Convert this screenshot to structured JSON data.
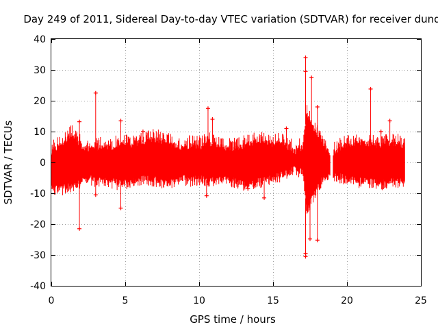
{
  "chart_data": {
    "type": "scatter",
    "title": "Day 249 of 2011, Sidereal Day-to-day VTEC variation (SDTVAR) for receiver dund",
    "xlabel": "GPS time / hours",
    "ylabel": "SDTVAR / TECUs",
    "xlim": [
      0,
      25
    ],
    "ylim": [
      -40,
      40
    ],
    "xticks": [
      0,
      5,
      10,
      15,
      20,
      25
    ],
    "yticks": [
      -40,
      -30,
      -20,
      -10,
      0,
      10,
      20,
      30,
      40
    ],
    "grid": true,
    "color": "#ff0000",
    "marker": "plus",
    "envelope": {
      "x": [
        0.0,
        0.5,
        1.0,
        1.3,
        1.6,
        2.0,
        2.4,
        3.0,
        3.5,
        4.0,
        4.5,
        5.0,
        5.5,
        6.0,
        6.5,
        7.0,
        7.5,
        8.0,
        8.5,
        9.0,
        9.5,
        10.0,
        10.5,
        11.0,
        11.5,
        12.0,
        12.5,
        13.0,
        13.5,
        14.0,
        14.5,
        15.0,
        15.5,
        16.0,
        16.5,
        17.0,
        17.3,
        17.6,
        18.0,
        18.4,
        18.8,
        19.0,
        19.5,
        20.0,
        20.5,
        21.0,
        21.5,
        22.0,
        22.5,
        23.0,
        23.5,
        23.9
      ],
      "upper": [
        3.5,
        5.0,
        7.0,
        9.0,
        8.0,
        5.5,
        4.5,
        4.5,
        5.0,
        5.0,
        5.5,
        6.0,
        5.5,
        6.5,
        7.0,
        7.5,
        7.0,
        6.0,
        5.0,
        5.0,
        5.5,
        5.0,
        6.0,
        6.5,
        5.0,
        4.5,
        4.5,
        5.5,
        6.0,
        7.0,
        6.5,
        6.0,
        6.5,
        5.0,
        3.5,
        5.0,
        16.0,
        12.0,
        9.0,
        5.0,
        3.0,
        3.0,
        4.5,
        5.5,
        6.0,
        6.5,
        6.0,
        5.5,
        6.0,
        6.5,
        6.0,
        5.5
      ],
      "lower": [
        -8.0,
        -8.5,
        -8.0,
        -7.5,
        -7.0,
        -6.0,
        -5.0,
        -5.5,
        -6.0,
        -6.0,
        -6.5,
        -6.5,
        -6.0,
        -5.0,
        -5.0,
        -5.5,
        -6.0,
        -6.0,
        -5.5,
        -5.0,
        -5.5,
        -5.0,
        -5.5,
        -5.5,
        -5.0,
        -5.5,
        -6.0,
        -7.0,
        -7.0,
        -6.0,
        -5.5,
        -5.0,
        -4.0,
        -3.0,
        -2.0,
        -3.0,
        -16.0,
        -12.0,
        -8.0,
        -5.0,
        -3.5,
        -4.0,
        -4.5,
        -5.0,
        -5.5,
        -6.0,
        -6.0,
        -6.5,
        -6.5,
        -6.0,
        -6.0,
        -6.0
      ]
    },
    "notable_points": [
      {
        "x": 1.9,
        "y": 13.2
      },
      {
        "x": 1.9,
        "y": -21.5
      },
      {
        "x": 3.0,
        "y": 22.5
      },
      {
        "x": 3.0,
        "y": -10.5
      },
      {
        "x": 4.7,
        "y": 13.5
      },
      {
        "x": 4.7,
        "y": -14.8
      },
      {
        "x": 6.2,
        "y": 10.0
      },
      {
        "x": 10.6,
        "y": 17.5
      },
      {
        "x": 10.5,
        "y": -10.8
      },
      {
        "x": 10.9,
        "y": 14.0
      },
      {
        "x": 13.3,
        "y": -8.5
      },
      {
        "x": 14.4,
        "y": -11.5
      },
      {
        "x": 15.9,
        "y": 11.0
      },
      {
        "x": 17.2,
        "y": 34.0
      },
      {
        "x": 17.2,
        "y": 29.5
      },
      {
        "x": 17.2,
        "y": -29.5
      },
      {
        "x": 17.2,
        "y": -30.5
      },
      {
        "x": 17.5,
        "y": -24.8
      },
      {
        "x": 17.6,
        "y": 27.5
      },
      {
        "x": 18.0,
        "y": -25.2
      },
      {
        "x": 18.0,
        "y": 18.0
      },
      {
        "x": 21.6,
        "y": 23.8
      },
      {
        "x": 22.9,
        "y": 13.5
      },
      {
        "x": 22.3,
        "y": 10.0
      }
    ]
  }
}
